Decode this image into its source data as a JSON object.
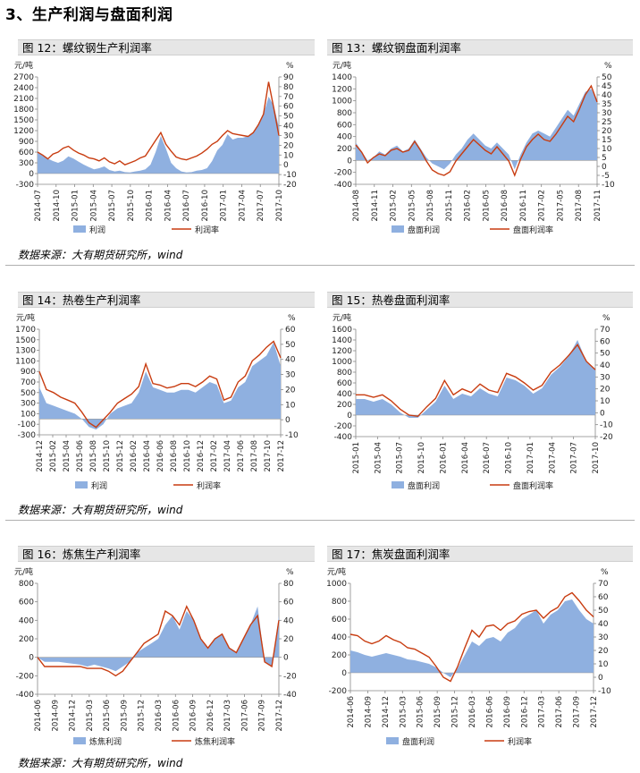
{
  "section_title": "3、生产利润与盘面利润",
  "source_text": "数据来源：大有期货研究所，wind",
  "colors": {
    "area": "#8fb0e0",
    "line": "#c83c10",
    "title_bg": "#e6e6e6"
  },
  "chart_data": [
    {
      "id": "f12",
      "type": "area",
      "panel_title": "图 12：螺纹钢生产利润率",
      "ylabel": "元/吨",
      "y2label": "%",
      "yticks": [
        "2700",
        "2400",
        "2100",
        "1800",
        "1500",
        "1200",
        "900",
        "600",
        "300",
        "0",
        "-300"
      ],
      "y2ticks": [
        "90",
        "80",
        "70",
        "60",
        "50",
        "40",
        "30",
        "20",
        "10",
        "0",
        "-10",
        "-20"
      ],
      "ylim": [
        -300,
        2700
      ],
      "y2lim": [
        -20,
        90
      ],
      "xticks": [
        "2014-07",
        "2014-10",
        "2015-01",
        "2015-04",
        "2015-07",
        "2015-10",
        "2016-01",
        "2016-04",
        "2016-07",
        "2016-10",
        "2017-01",
        "2017-04",
        "2017-07",
        "2017-10"
      ],
      "series": [
        {
          "name": "利润",
          "kind": "area",
          "values": [
            580,
            520,
            420,
            350,
            300,
            360,
            480,
            420,
            330,
            250,
            180,
            120,
            150,
            200,
            100,
            60,
            80,
            40,
            30,
            60,
            80,
            120,
            250,
            600,
            1050,
            700,
            300,
            150,
            60,
            30,
            40,
            80,
            100,
            150,
            350,
            650,
            800,
            1100,
            950,
            1000,
            1000,
            1050,
            1150,
            1350,
            1650,
            2150,
            1900,
            1300
          ]
        },
        {
          "name": "利润率",
          "kind": "line",
          "axis": "y2",
          "values": [
            13,
            10,
            6,
            11,
            13,
            17,
            19,
            15,
            12,
            10,
            7,
            6,
            4,
            7,
            3,
            1,
            4,
            0,
            2,
            4,
            7,
            9,
            17,
            25,
            33,
            21,
            14,
            8,
            6,
            5,
            7,
            9,
            12,
            16,
            21,
            24,
            30,
            35,
            32,
            31,
            30,
            29,
            33,
            41,
            52,
            85,
            58,
            30
          ]
        }
      ]
    },
    {
      "id": "f13",
      "type": "area",
      "panel_title": "图 13：螺纹钢盘面利润率",
      "ylabel": "元/吨",
      "y2label": "%",
      "yticks": [
        "1400",
        "1200",
        "1000",
        "800",
        "600",
        "400",
        "200",
        "0",
        "-200",
        "-400"
      ],
      "y2ticks": [
        "50",
        "45",
        "40",
        "35",
        "30",
        "25",
        "20",
        "15",
        "10",
        "5",
        "0",
        "-5",
        "-10"
      ],
      "ylim": [
        -400,
        1400
      ],
      "y2lim": [
        -10,
        50
      ],
      "xticks": [
        "2014-08",
        "2014-11",
        "2015-02",
        "2015-05",
        "2015-08",
        "2015-11",
        "2016-02",
        "2016-05",
        "2016-08",
        "2016-11",
        "2017-02",
        "2017-05",
        "2017-08",
        "2017-11"
      ],
      "series": [
        {
          "name": "盘面利润",
          "kind": "area",
          "values": [
            300,
            150,
            0,
            50,
            150,
            100,
            200,
            250,
            150,
            200,
            350,
            200,
            50,
            -50,
            -100,
            -150,
            -50,
            100,
            200,
            350,
            450,
            350,
            250,
            200,
            300,
            200,
            100,
            -150,
            100,
            300,
            450,
            500,
            450,
            400,
            550,
            700,
            850,
            750,
            950,
            1150,
            1200,
            1000
          ]
        },
        {
          "name": "盘面利润率",
          "kind": "line",
          "axis": "y2",
          "values": [
            12,
            8,
            2,
            5,
            7,
            6,
            9,
            10,
            8,
            9,
            14,
            9,
            3,
            -2,
            -4,
            -5,
            -3,
            3,
            7,
            11,
            15,
            12,
            9,
            7,
            11,
            7,
            3,
            -5,
            4,
            11,
            15,
            18,
            15,
            14,
            18,
            23,
            28,
            25,
            32,
            40,
            45,
            36
          ]
        }
      ]
    },
    {
      "id": "f14",
      "type": "area",
      "panel_title": "图 14：热卷生产利润率",
      "ylabel": "元/吨",
      "y2label": "%",
      "yticks": [
        "1700",
        "1500",
        "1300",
        "1100",
        "900",
        "700",
        "500",
        "300",
        "100",
        "-100",
        "-300"
      ],
      "y2ticks": [
        "60",
        "50",
        "40",
        "30",
        "20",
        "10",
        "0",
        "-10"
      ],
      "ylim": [
        -300,
        1700
      ],
      "y2lim": [
        -10,
        60
      ],
      "xticks": [
        "2014-12",
        "2015-02",
        "2015-04",
        "2015-06",
        "2015-08",
        "2015-10",
        "2015-12",
        "2016-02",
        "2016-04",
        "2016-06",
        "2016-08",
        "2016-10",
        "2016-12",
        "2017-02",
        "2017-04",
        "2017-06",
        "2017-08",
        "2017-10",
        "2017-12"
      ],
      "series": [
        {
          "name": "利润",
          "kind": "area",
          "values": [
            600,
            300,
            250,
            200,
            150,
            100,
            0,
            -150,
            -200,
            -100,
            100,
            200,
            250,
            300,
            500,
            900,
            600,
            550,
            500,
            500,
            550,
            550,
            500,
            600,
            700,
            650,
            300,
            350,
            600,
            700,
            1000,
            1100,
            1200,
            1450,
            1000
          ]
        },
        {
          "name": "利润率",
          "kind": "line",
          "axis": "y2",
          "values": [
            32,
            20,
            18,
            15,
            13,
            11,
            5,
            -2,
            -5,
            0,
            5,
            11,
            14,
            17,
            22,
            37,
            24,
            23,
            21,
            22,
            24,
            24,
            22,
            25,
            29,
            27,
            13,
            15,
            25,
            29,
            39,
            43,
            48,
            52,
            41
          ]
        }
      ]
    },
    {
      "id": "f15",
      "type": "area",
      "panel_title": "图 15：热卷盘面利润率",
      "ylabel": "元/吨",
      "y2label": "%",
      "yticks": [
        "1600",
        "1400",
        "1200",
        "1000",
        "800",
        "600",
        "400",
        "200",
        "0",
        "-200",
        "-400"
      ],
      "y2ticks": [
        "70",
        "60",
        "50",
        "40",
        "30",
        "20",
        "10",
        "0",
        "-10",
        "-20"
      ],
      "ylim": [
        -400,
        1600
      ],
      "y2lim": [
        -20,
        70
      ],
      "xticks": [
        "2015-01",
        "2015-04",
        "2015-07",
        "2015-10",
        "2016-01",
        "2016-04",
        "2016-07",
        "2016-10",
        "2017-01",
        "2017-04",
        "2017-07",
        "2017-10"
      ],
      "series": [
        {
          "name": "盘面利润",
          "kind": "area",
          "values": [
            300,
            300,
            250,
            300,
            200,
            50,
            -50,
            -50,
            100,
            250,
            550,
            300,
            400,
            350,
            500,
            400,
            350,
            700,
            650,
            550,
            400,
            500,
            750,
            900,
            1100,
            1400,
            1000,
            850
          ]
        },
        {
          "name": "盘面利润率",
          "kind": "line",
          "axis": "y2",
          "values": [
            15,
            15,
            13,
            15,
            10,
            3,
            -2,
            -3,
            5,
            12,
            27,
            15,
            20,
            17,
            24,
            19,
            17,
            33,
            30,
            25,
            19,
            23,
            34,
            40,
            48,
            57,
            43,
            36
          ]
        }
      ]
    },
    {
      "id": "f16",
      "type": "area",
      "panel_title": "图 16：炼焦生产利润率",
      "ylabel": "元/吨",
      "y2label": "%",
      "yticks": [
        "800",
        "600",
        "400",
        "200",
        "0",
        "-200",
        "-400"
      ],
      "y2ticks": [
        "80",
        "60",
        "40",
        "20",
        "0",
        "-20",
        "-40"
      ],
      "ylim": [
        -400,
        800
      ],
      "y2lim": [
        -40,
        80
      ],
      "xticks": [
        "2014-06",
        "2014-09",
        "2014-12",
        "2015-03",
        "2015-06",
        "2015-09",
        "2015-12",
        "2016-03",
        "2016-06",
        "2016-09",
        "2016-12",
        "2017-03",
        "2017-06",
        "2017-09",
        "2017-12"
      ],
      "series": [
        {
          "name": "炼焦利润",
          "kind": "area",
          "values": [
            0,
            -50,
            -50,
            -50,
            -60,
            -70,
            -80,
            -100,
            -80,
            -100,
            -120,
            -150,
            -100,
            -50,
            50,
            100,
            150,
            200,
            350,
            450,
            300,
            500,
            400,
            200,
            100,
            200,
            250,
            100,
            50,
            200,
            350,
            550,
            -50,
            -100,
            450
          ]
        },
        {
          "name": "炼焦利润率",
          "kind": "line",
          "axis": "y2",
          "values": [
            0,
            -10,
            -10,
            -10,
            -10,
            -10,
            -10,
            -12,
            -12,
            -12,
            -15,
            -20,
            -15,
            -5,
            5,
            15,
            20,
            25,
            50,
            45,
            35,
            55,
            40,
            20,
            10,
            20,
            25,
            10,
            5,
            20,
            35,
            45,
            -5,
            -10,
            40
          ]
        }
      ]
    },
    {
      "id": "f17",
      "type": "area",
      "panel_title": "图 17：焦炭盘面利润率",
      "ylabel": "元/吨",
      "y2label": "%",
      "yticks": [
        "1000",
        "800",
        "600",
        "400",
        "200",
        "0",
        "-200"
      ],
      "y2ticks": [
        "70",
        "60",
        "50",
        "40",
        "30",
        "20",
        "10",
        "0",
        "-10"
      ],
      "ylim": [
        -200,
        1000
      ],
      "y2lim": [
        -10,
        70
      ],
      "xticks": [
        "2014-06",
        "2014-09",
        "2014-12",
        "2015-03",
        "2015-06",
        "2015-09",
        "2015-12",
        "2016-03",
        "2016-06",
        "2016-09",
        "2016-12",
        "2017-03",
        "2017-06",
        "2017-09",
        "2017-12"
      ],
      "series": [
        {
          "name": "盘面利润",
          "kind": "area",
          "values": [
            250,
            230,
            200,
            180,
            200,
            220,
            200,
            180,
            150,
            140,
            120,
            100,
            60,
            0,
            -50,
            50,
            200,
            350,
            300,
            380,
            400,
            350,
            450,
            500,
            600,
            650,
            700,
            550,
            650,
            700,
            800,
            820,
            700,
            600,
            550
          ]
        },
        {
          "name": "利润率",
          "kind": "line",
          "axis": "y2",
          "values": [
            32,
            31,
            27,
            25,
            27,
            31,
            28,
            26,
            22,
            21,
            18,
            15,
            8,
            0,
            -3,
            8,
            22,
            35,
            30,
            38,
            39,
            35,
            40,
            42,
            47,
            49,
            50,
            44,
            49,
            52,
            60,
            63,
            57,
            50,
            45
          ]
        }
      ]
    }
  ]
}
